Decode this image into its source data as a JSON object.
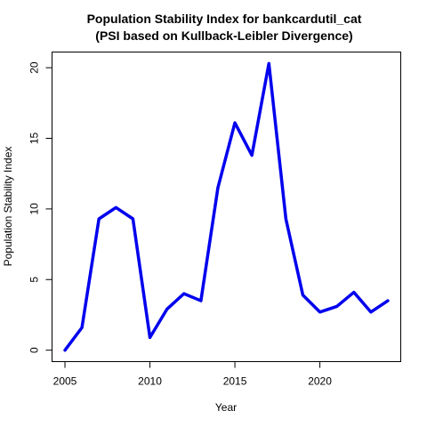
{
  "chart_data": {
    "type": "line",
    "title": "Population Stability Index for bankcardutil_cat",
    "subtitle": "(PSI based on Kullback-Leibler Divergence)",
    "xlabel": "Year",
    "ylabel": "Population Stability Index",
    "x": [
      2005,
      2006,
      2007,
      2008,
      2009,
      2010,
      2011,
      2012,
      2013,
      2014,
      2015,
      2016,
      2017,
      2018,
      2019,
      2020,
      2021,
      2022,
      2023,
      2024
    ],
    "series": [
      {
        "values": [
          0.0,
          1.6,
          9.3,
          10.1,
          9.3,
          0.9,
          2.9,
          4.0,
          3.5,
          11.5,
          16.1,
          13.8,
          20.3,
          9.3,
          3.9,
          2.7,
          3.1,
          4.1,
          2.7,
          3.5
        ],
        "color": "#0000ee"
      }
    ],
    "xticks": [
      2005,
      2010,
      2015,
      2020
    ],
    "yticks": [
      0,
      5,
      10,
      15,
      20
    ],
    "xlim": [
      2004.24,
      2024.76
    ],
    "ylim": [
      -0.81,
      21.11
    ],
    "grid": false,
    "legend": "none"
  }
}
